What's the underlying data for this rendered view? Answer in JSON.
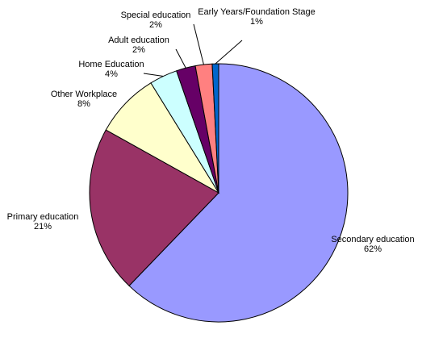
{
  "chart_data": {
    "type": "pie",
    "title": "",
    "slices": [
      {
        "label": "Secondary education",
        "pct_label": "62%",
        "value": 62.2,
        "color": "#9999ff"
      },
      {
        "label": "Primary education",
        "pct_label": "21%",
        "value": 20.9,
        "color": "#993366"
      },
      {
        "label": "Other Workplace",
        "pct_label": "8%",
        "value": 8.1,
        "color": "#ffffcc"
      },
      {
        "label": "Home Education",
        "pct_label": "4%",
        "value": 3.5,
        "color": "#ccffff"
      },
      {
        "label": "Adult education",
        "pct_label": "2%",
        "value": 2.4,
        "color": "#660066"
      },
      {
        "label": "Special education",
        "pct_label": "2%",
        "value": 2.1,
        "color": "#ff8080"
      },
      {
        "label": "Early Years/Foundation Stage",
        "pct_label": "1%",
        "value": 0.8,
        "color": "#0066cc"
      }
    ],
    "legend": "none",
    "data_labels": "outside"
  }
}
